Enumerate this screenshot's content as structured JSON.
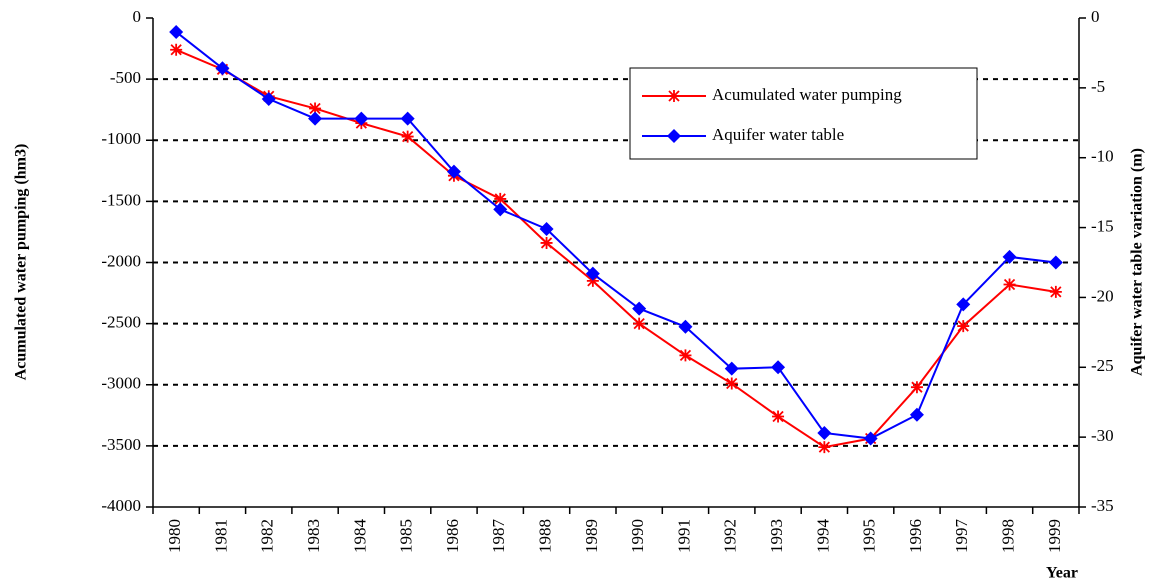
{
  "chart_data": {
    "type": "line",
    "categories": [
      "1980",
      "1981",
      "1982",
      "1983",
      "1984",
      "1985",
      "1986",
      "1987",
      "1988",
      "1989",
      "1990",
      "1991",
      "1992",
      "1993",
      "1994",
      "1995",
      "1996",
      "1997",
      "1998",
      "1999"
    ],
    "x_label": "Year",
    "y_label": "Acumulated water pumping (hm3)",
    "y2_label": "Aquifer water table variation (m)",
    "ylim": [
      -4000,
      0
    ],
    "yticks": [
      0,
      -500,
      -1000,
      -1500,
      -2000,
      -2500,
      -3000,
      -3500,
      -4000
    ],
    "y2lim": [
      -35,
      0
    ],
    "y2ticks": [
      0,
      -5,
      -10,
      -15,
      -20,
      -25,
      -30,
      -35
    ],
    "grid": true,
    "series": [
      {
        "name": "Acumulated water pumping",
        "color": "#ff0000",
        "marker": "asterisk",
        "values": [
          -260,
          -420,
          -640,
          -740,
          -860,
          -970,
          -1290,
          -1480,
          -1840,
          -2150,
          -2500,
          -2760,
          -2990,
          -3260,
          -3510,
          -3440,
          -3020,
          -2520,
          -2180,
          -2240
        ]
      },
      {
        "name": "Aquifer water table",
        "color": "#0000ff",
        "marker": "diamond",
        "axis": "y2",
        "values": [
          -1.0,
          -3.6,
          -5.8,
          -7.2,
          -7.2,
          -7.2,
          -11.0,
          -13.7,
          -15.1,
          -18.3,
          -20.8,
          -22.1,
          -25.1,
          -25.0,
          -29.7,
          -30.1,
          -28.4,
          -20.5,
          -17.1,
          -17.5
        ]
      }
    ]
  }
}
